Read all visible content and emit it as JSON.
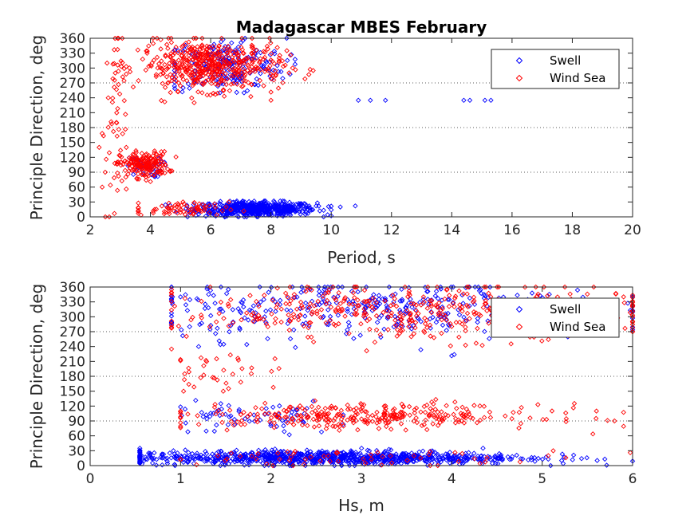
{
  "chart_data": [
    {
      "type": "scatter",
      "title": "Madagascar MBES February",
      "xlabel": "Period, s",
      "ylabel": "Principle Direction, deg",
      "xlim": [
        2,
        20
      ],
      "ylim": [
        0,
        360
      ],
      "xticks": [
        2,
        4,
        6,
        8,
        10,
        12,
        14,
        16,
        18,
        20
      ],
      "yticks": [
        0,
        30,
        60,
        90,
        120,
        150,
        180,
        210,
        240,
        270,
        300,
        330,
        360
      ],
      "gridlines_y": [
        90,
        180,
        270
      ],
      "legend": {
        "position": "top-right"
      },
      "series": [
        {
          "name": "Swell",
          "color": "#0000ff",
          "marker": "diamond",
          "clusters": [
            {
              "x": [
                4.5,
                10.0
              ],
              "y": [
                0,
                32
              ],
              "n": 560,
              "cx": 7.5,
              "sx": 1.0,
              "cy": 16,
              "sy": 7
            },
            {
              "x": [
                4.8,
                8.8
              ],
              "y": [
                250,
                360
              ],
              "n": 200,
              "cx": 6.5,
              "sx": 1.0,
              "cy": 305,
              "sy": 28
            },
            {
              "x": [
                2.8,
                4.5
              ],
              "y": [
                70,
                130
              ],
              "n": 40,
              "cx": 3.8,
              "sx": 0.3,
              "cy": 100,
              "sy": 10
            }
          ],
          "points": [
            [
              10.9,
              235
            ],
            [
              11.3,
              235
            ],
            [
              11.8,
              235
            ],
            [
              14.4,
              235
            ],
            [
              14.6,
              235
            ],
            [
              15.1,
              235
            ],
            [
              15.3,
              235
            ],
            [
              9.5,
              22
            ],
            [
              10.3,
              20
            ],
            [
              10.8,
              22
            ]
          ]
        },
        {
          "name": "Wind Sea",
          "color": "#ff0000",
          "marker": "diamond",
          "clusters": [
            {
              "x": [
                2.9,
                5.2
              ],
              "y": [
                60,
                150
              ],
              "n": 190,
              "cx": 3.8,
              "sx": 0.4,
              "cy": 105,
              "sy": 13
            },
            {
              "x": [
                2.8,
                9.4
              ],
              "y": [
                230,
                360
              ],
              "n": 500,
              "cx": 6.0,
              "sx": 1.2,
              "cy": 305,
              "sy": 25
            },
            {
              "x": [
                2.4,
                3.2
              ],
              "y": [
                0,
                360
              ],
              "n": 50,
              "cx": 2.8,
              "sx": 0.2,
              "cy": 170,
              "sy": 110
            },
            {
              "x": [
                3.6,
                7.5
              ],
              "y": [
                0,
                30
              ],
              "n": 70,
              "cx": 5.0,
              "sx": 0.8,
              "cy": 15,
              "sy": 8
            }
          ],
          "points": [
            [
              8.0,
              235
            ],
            [
              2.6,
              240
            ],
            [
              2.5,
              90
            ],
            [
              2.4,
              60
            ],
            [
              2.3,
              140
            ]
          ]
        }
      ]
    },
    {
      "type": "scatter",
      "title": "",
      "xlabel": "Hs, m",
      "ylabel": "Principle Direction, deg",
      "xlim": [
        0,
        6
      ],
      "ylim": [
        0,
        360
      ],
      "xticks": [
        0,
        1,
        2,
        3,
        4,
        5,
        6
      ],
      "yticks": [
        0,
        30,
        60,
        90,
        120,
        150,
        180,
        210,
        240,
        270,
        300,
        330,
        360
      ],
      "gridlines_y": [
        90,
        180,
        270
      ],
      "legend": {
        "position": "top-right"
      },
      "series": [
        {
          "name": "Swell",
          "color": "#0000ff",
          "marker": "diamond",
          "clusters": [
            {
              "x": [
                0.55,
                6.0
              ],
              "y": [
                0,
                35
              ],
              "n": 900,
              "cx": 2.6,
              "sx": 1.1,
              "cy": 16,
              "sy": 7
            },
            {
              "x": [
                0.9,
                6.0
              ],
              "y": [
                220,
                360
              ],
              "n": 380,
              "cx": 3.2,
              "sx": 1.3,
              "cy": 315,
              "sy": 30
            },
            {
              "x": [
                1.0,
                2.8
              ],
              "y": [
                60,
                150
              ],
              "n": 70,
              "cx": 1.8,
              "sx": 0.5,
              "cy": 95,
              "sy": 18
            }
          ],
          "points": [
            [
              0.9,
              360
            ],
            [
              1.0,
              340
            ],
            [
              1.1,
              280
            ],
            [
              1.2,
              240
            ]
          ]
        },
        {
          "name": "Wind Sea",
          "color": "#ff0000",
          "marker": "diamond",
          "clusters": [
            {
              "x": [
                1.0,
                5.9
              ],
              "y": [
                60,
                150
              ],
              "n": 320,
              "cx": 3.0,
              "sx": 1.0,
              "cy": 100,
              "sy": 12
            },
            {
              "x": [
                0.9,
                6.0
              ],
              "y": [
                220,
                360
              ],
              "n": 420,
              "cx": 3.6,
              "sx": 1.3,
              "cy": 310,
              "sy": 28
            },
            {
              "x": [
                1.0,
                2.2
              ],
              "y": [
                150,
                230
              ],
              "n": 35,
              "cx": 1.5,
              "sx": 0.35,
              "cy": 185,
              "sy": 22
            },
            {
              "x": [
                1.0,
                6.0
              ],
              "y": [
                0,
                30
              ],
              "n": 60,
              "cx": 3.0,
              "sx": 1.2,
              "cy": 15,
              "sy": 8
            }
          ],
          "points": [
            [
              5.8,
              90
            ],
            [
              5.6,
              110
            ],
            [
              5.9,
              340
            ],
            [
              6.0,
              300
            ]
          ]
        }
      ]
    }
  ]
}
